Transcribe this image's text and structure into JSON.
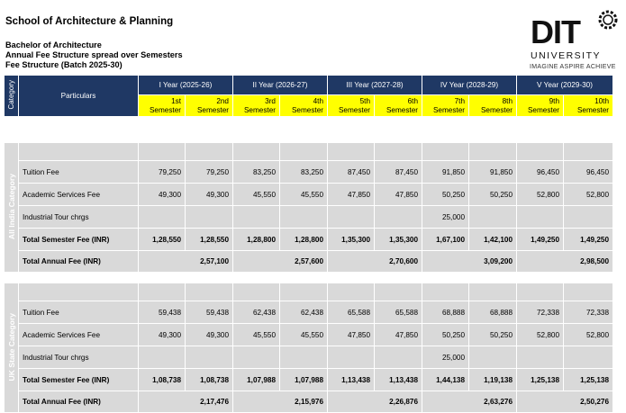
{
  "school": "School of Architecture & Planning",
  "program": "Bachelor of Architecture",
  "structure_title": "Annual Fee Structure spread over Semesters",
  "batch": "Fee Structure (Batch 2025-30)",
  "logo": {
    "name": "DIT",
    "university": "UNIVERSITY",
    "tagline": "IMAGINE  ASPIRE  ACHIEVE",
    "icon": "gear-icon"
  },
  "colors": {
    "header_bg": "#1f3864",
    "semester_bg": "#ffff00",
    "cell_bg": "#d9d9d9"
  },
  "head": {
    "category": "Category",
    "particulars": "Particulars",
    "years": [
      "I Year (2025-26)",
      "II Year (2026-27)",
      "III Year (2027-28)",
      "IV Year (2028-29)",
      "V Year (2029-30)"
    ],
    "semesters": [
      [
        "1st",
        "Semester"
      ],
      [
        "2nd",
        "Semester"
      ],
      [
        "3rd",
        "Semester"
      ],
      [
        "4th",
        "Semester"
      ],
      [
        "5th",
        "Semester"
      ],
      [
        "6th",
        "Semester"
      ],
      [
        "7th",
        "Semester"
      ],
      [
        "8th",
        "Semester"
      ],
      [
        "9th",
        "Semester"
      ],
      [
        "10th",
        "Semester"
      ]
    ]
  },
  "sections": [
    {
      "category": "All India Category",
      "rows": [
        {
          "label": "Tuition Fee",
          "values": [
            "79,250",
            "79,250",
            "83,250",
            "83,250",
            "87,450",
            "87,450",
            "91,850",
            "91,850",
            "96,450",
            "96,450"
          ]
        },
        {
          "label": "Academic Services Fee",
          "values": [
            "49,300",
            "49,300",
            "45,550",
            "45,550",
            "47,850",
            "47,850",
            "50,250",
            "50,250",
            "52,800",
            "52,800"
          ]
        },
        {
          "label": "Industrial Tour chrgs",
          "values": [
            "",
            "",
            "",
            "",
            "",
            "",
            "25,000",
            "",
            "",
            ""
          ]
        },
        {
          "label": "Total Semester Fee (INR)",
          "values": [
            "1,28,550",
            "1,28,550",
            "1,28,800",
            "1,28,800",
            "1,35,300",
            "1,35,300",
            "1,67,100",
            "1,42,100",
            "1,49,250",
            "1,49,250"
          ]
        }
      ],
      "annual_label": "Total Annual Fee (INR)",
      "annual": [
        "2,57,100",
        "2,57,600",
        "2,70,600",
        "3,09,200",
        "2,98,500"
      ]
    },
    {
      "category": "UK State Category",
      "rows": [
        {
          "label": "Tuition Fee",
          "values": [
            "59,438",
            "59,438",
            "62,438",
            "62,438",
            "65,588",
            "65,588",
            "68,888",
            "68,888",
            "72,338",
            "72,338"
          ]
        },
        {
          "label": "Academic Services Fee",
          "values": [
            "49,300",
            "49,300",
            "45,550",
            "45,550",
            "47,850",
            "47,850",
            "50,250",
            "50,250",
            "52,800",
            "52,800"
          ]
        },
        {
          "label": "Industrial Tour chrgs",
          "values": [
            "",
            "",
            "",
            "",
            "",
            "",
            "25,000",
            "",
            "",
            ""
          ]
        },
        {
          "label": "Total Semester Fee (INR)",
          "values": [
            "1,08,738",
            "1,08,738",
            "1,07,988",
            "1,07,988",
            "1,13,438",
            "1,13,438",
            "1,44,138",
            "1,19,138",
            "1,25,138",
            "1,25,138"
          ]
        }
      ],
      "annual_label": "Total Annual Fee (INR)",
      "annual": [
        "2,17,476",
        "2,15,976",
        "2,26,876",
        "2,63,276",
        "2,50,276"
      ]
    }
  ]
}
